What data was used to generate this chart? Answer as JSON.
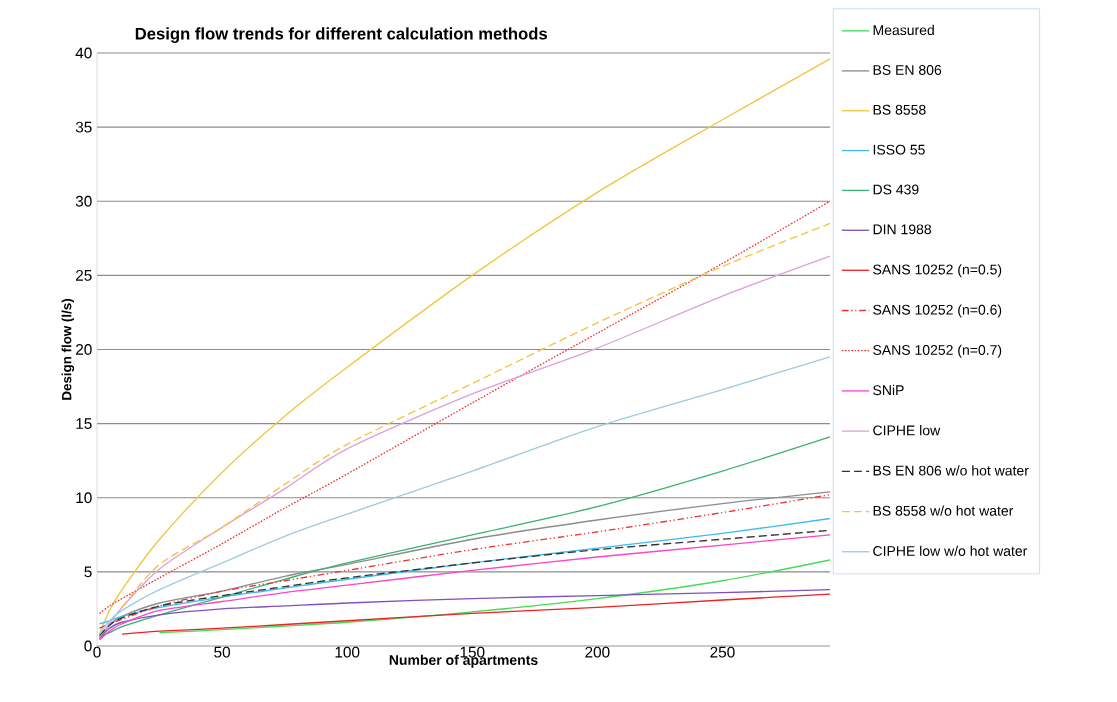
{
  "chart_data": {
    "type": "line",
    "title": "Design flow trends for different calculation methods",
    "xlabel": "Number of apartments",
    "ylabel": "Design flow (l/s)",
    "xlim": [
      0,
      293
    ],
    "xticks": [
      0,
      50,
      100,
      150,
      200,
      250
    ],
    "ylim": [
      0,
      40
    ],
    "yticks": [
      0,
      5,
      10,
      15,
      20,
      25,
      30,
      35,
      40
    ],
    "grid": "y",
    "legend": "right",
    "marker": "none",
    "x": [
      1,
      5,
      10,
      25,
      50,
      75,
      100,
      150,
      200,
      250,
      293
    ],
    "series": [
      {
        "name": "Measured",
        "color": "#44dd55",
        "line_style": "solid",
        "values": [
          null,
          null,
          null,
          0.9,
          1.1,
          1.35,
          1.6,
          2.3,
          3.2,
          4.4,
          5.8
        ]
      },
      {
        "name": "BS EN 806",
        "color": "#8c8c8c",
        "line_style": "solid",
        "values": [
          0.6,
          1.4,
          2.0,
          2.9,
          3.7,
          4.7,
          5.5,
          7.2,
          8.5,
          9.6,
          10.4
        ]
      },
      {
        "name": "BS 8558",
        "color": "#f5c342",
        "line_style": "solid",
        "values": [
          0.8,
          2.4,
          3.8,
          7.2,
          11.7,
          15.5,
          18.8,
          25.0,
          30.6,
          35.5,
          39.6
        ]
      },
      {
        "name": "ISSO 55",
        "color": "#3dbbee",
        "line_style": "solid",
        "values": [
          1.5,
          1.7,
          2.0,
          2.6,
          3.3,
          3.9,
          4.5,
          5.6,
          6.6,
          7.6,
          8.6
        ]
      },
      {
        "name": "DS 439",
        "color": "#3cb371",
        "line_style": "solid",
        "values": [
          0.6,
          0.9,
          1.3,
          2.1,
          3.3,
          4.5,
          5.6,
          7.5,
          9.4,
          11.8,
          14.1
        ]
      },
      {
        "name": "DIN 1988",
        "color": "#8050c0",
        "line_style": "solid",
        "values": [
          0.5,
          1.2,
          1.6,
          2.1,
          2.5,
          2.7,
          2.9,
          3.2,
          3.4,
          3.6,
          3.8
        ]
      },
      {
        "name": "SANS 10252 (n=0.5)",
        "color": "#ee2222",
        "line_style": "solid",
        "values": [
          null,
          null,
          0.8,
          1.0,
          1.2,
          1.45,
          1.7,
          2.2,
          2.6,
          3.1,
          3.5
        ]
      },
      {
        "name": "SANS 10252 (n=0.6)",
        "color": "#ee3333",
        "line_style": "dashdot",
        "values": [
          1.2,
          1.5,
          1.8,
          2.7,
          3.7,
          4.4,
          5.1,
          6.5,
          7.7,
          9.0,
          10.2
        ]
      },
      {
        "name": "SANS 10252 (n=0.7)",
        "color": "#ee3333",
        "line_style": "dotted",
        "values": [
          2.2,
          2.7,
          3.2,
          4.6,
          6.9,
          9.3,
          11.6,
          16.4,
          21.1,
          25.8,
          30.0
        ]
      },
      {
        "name": "SNiP",
        "color": "#ff44cc",
        "line_style": "solid",
        "values": [
          0.4,
          1.0,
          1.5,
          2.4,
          3.0,
          3.6,
          4.1,
          5.1,
          6.0,
          6.8,
          7.5
        ]
      },
      {
        "name": "CIPHE low",
        "color": "#dda0dd",
        "line_style": "solid",
        "values": [
          0.6,
          1.5,
          2.6,
          5.2,
          8.0,
          10.6,
          13.3,
          17.0,
          20.1,
          23.6,
          26.3
        ]
      },
      {
        "name": "BS EN 806 w/o hot water",
        "color": "#333333",
        "line_style": "dashed",
        "values": [
          0.7,
          1.4,
          1.9,
          2.7,
          3.4,
          4.0,
          4.6,
          5.6,
          6.5,
          7.2,
          7.8
        ]
      },
      {
        "name": "BS 8558 w/o hot water",
        "color": "#f5c342",
        "line_style": "dashed",
        "values": [
          null,
          null,
          2.6,
          5.5,
          8.0,
          10.9,
          13.6,
          17.7,
          21.8,
          25.6,
          28.5
        ]
      },
      {
        "name": "CIPHE low w/o hot water",
        "color": "#9ecae1",
        "line_style": "solid",
        "values": [
          0.8,
          1.7,
          2.4,
          3.8,
          5.6,
          7.4,
          8.9,
          11.8,
          14.8,
          17.3,
          19.5
        ]
      }
    ]
  }
}
